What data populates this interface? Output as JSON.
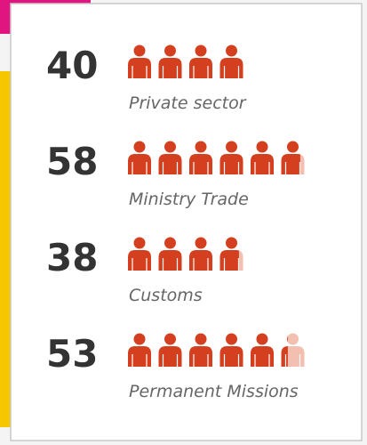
{
  "chart_data": {
    "type": "pictogram",
    "categories": [
      "Private sector",
      "Ministry Trade",
      "Customs",
      "Permanent Missions"
    ],
    "values": [
      40,
      58,
      38,
      53
    ],
    "color": "#d4401f",
    "faded_color": "#f2bfb0"
  }
}
